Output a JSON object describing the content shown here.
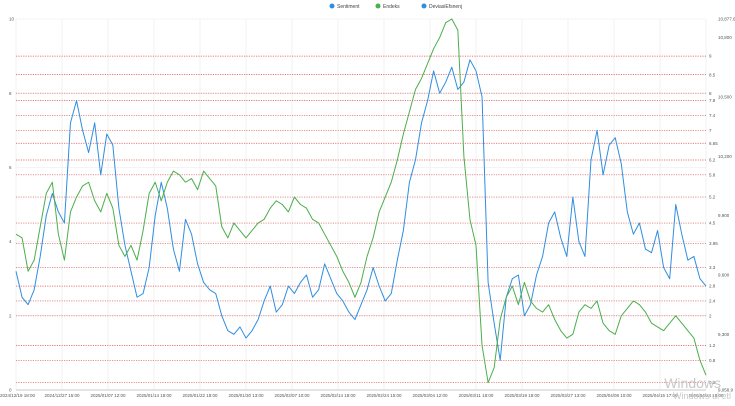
{
  "legend": {
    "items": [
      {
        "label": "Sentiment",
        "color": "#2f8ee0"
      },
      {
        "label": "Endeks",
        "color": "#4cae4c"
      },
      {
        "label": "DeviasiEfsnenj",
        "color": "#2f8ee0"
      }
    ]
  },
  "watermark": {
    "line1": "Windows",
    "line2": "Windows ul etl"
  },
  "chart_data": {
    "type": "line",
    "x_tick_labels": [
      "2024/12/19 18:00",
      "2024/12/27 15:00",
      "2025/01/07 12:00",
      "2025/01/14 18:00",
      "2025/01/22 18:00",
      "2025/01/30 13:00",
      "2025/02/07 10:00",
      "2025/02/14 18:00",
      "2025/02/24 15:00",
      "2025/03/04 12:00",
      "2025/03/11 18:00",
      "2025/03/19 18:00",
      "2025/03/27 13:00",
      "2025/04/08 10:00",
      "2025/04/15 17:00",
      "2025/04/24 18:00"
    ],
    "y_left": {
      "min": 0,
      "max": 10,
      "ticks": [
        "0",
        "2",
        "4",
        "6",
        "8",
        "10"
      ]
    },
    "y_right_ticks": [
      {
        "label": "10,877.61",
        "v": 10.0
      },
      {
        "label": "10,800",
        "v": 9.5
      },
      {
        "label": "10,500",
        "v": 7.9
      },
      {
        "label": "10,200",
        "v": 6.3
      },
      {
        "label": "9,900",
        "v": 4.7
      },
      {
        "label": "9,600",
        "v": 3.1
      },
      {
        "label": "9,300",
        "v": 1.5
      },
      {
        "label": "9,058.9",
        "v": 0.0
      }
    ],
    "reference_lines": [
      {
        "label": "9",
        "v": 9.0
      },
      {
        "label": "8.5",
        "v": 8.5
      },
      {
        "label": "8",
        "v": 8.0
      },
      {
        "label": "7.8",
        "v": 7.8
      },
      {
        "label": "7.4",
        "v": 7.4
      },
      {
        "label": "7",
        "v": 7.0
      },
      {
        "label": "6.65",
        "v": 6.65
      },
      {
        "label": "6.2",
        "v": 6.2
      },
      {
        "label": "5.8",
        "v": 5.8
      },
      {
        "label": "5.2",
        "v": 5.2
      },
      {
        "label": "4.5",
        "v": 4.5
      },
      {
        "label": "3.95",
        "v": 3.95
      },
      {
        "label": "3.3",
        "v": 3.3
      },
      {
        "label": "2.8",
        "v": 2.8
      },
      {
        "label": "2.4",
        "v": 2.4
      },
      {
        "label": "2",
        "v": 2.0
      },
      {
        "label": "1.2",
        "v": 1.2
      },
      {
        "label": "0.8",
        "v": 0.8
      },
      {
        "label": "0.2",
        "v": 0.2
      }
    ],
    "series": [
      {
        "name": "Sentiment",
        "color": "#2f8ee0",
        "values": [
          3.2,
          2.5,
          2.3,
          2.7,
          3.6,
          4.7,
          5.3,
          4.8,
          4.5,
          7.2,
          7.8,
          7.0,
          6.4,
          7.2,
          5.8,
          6.9,
          6.6,
          4.9,
          3.9,
          3.2,
          2.5,
          2.6,
          3.3,
          4.7,
          5.6,
          4.9,
          3.8,
          3.2,
          4.6,
          4.2,
          3.4,
          2.9,
          2.7,
          2.6,
          2.0,
          1.6,
          1.5,
          1.7,
          1.4,
          1.6,
          1.9,
          2.4,
          2.8,
          2.1,
          2.3,
          2.8,
          2.6,
          2.9,
          3.1,
          2.5,
          2.7,
          3.4,
          3.0,
          2.6,
          2.4,
          2.1,
          1.9,
          2.3,
          2.7,
          3.3,
          2.8,
          2.4,
          2.6,
          3.5,
          4.3,
          5.6,
          6.2,
          7.2,
          7.8,
          8.6,
          8.0,
          8.3,
          8.7,
          8.1,
          8.3,
          8.9,
          8.6,
          7.9,
          2.9,
          1.8,
          0.8,
          2.5,
          3.0,
          3.1,
          2.0,
          2.3,
          3.1,
          3.6,
          4.5,
          4.8,
          4.1,
          3.6,
          5.2,
          4.0,
          3.6,
          6.2,
          7.0,
          5.8,
          6.6,
          6.8,
          6.1,
          4.8,
          4.2,
          4.5,
          3.8,
          3.7,
          4.3,
          3.3,
          3.0,
          5.0,
          4.2,
          3.5,
          3.6,
          3.0,
          2.8
        ]
      },
      {
        "name": "Endeks",
        "color": "#4cae4c",
        "values": [
          4.2,
          4.1,
          3.2,
          3.5,
          4.4,
          5.3,
          5.6,
          4.2,
          3.5,
          4.8,
          5.2,
          5.5,
          5.6,
          5.1,
          4.8,
          5.3,
          4.9,
          3.9,
          3.6,
          3.9,
          3.5,
          4.3,
          5.3,
          5.6,
          5.1,
          5.6,
          5.9,
          5.8,
          5.6,
          5.7,
          5.4,
          5.9,
          5.7,
          5.5,
          4.4,
          4.1,
          4.5,
          4.3,
          4.1,
          4.3,
          4.5,
          4.6,
          4.9,
          5.1,
          5.0,
          4.8,
          5.2,
          5.0,
          4.9,
          4.6,
          4.5,
          4.2,
          3.9,
          3.6,
          3.2,
          2.9,
          2.5,
          2.9,
          3.6,
          4.1,
          4.8,
          5.2,
          5.6,
          6.2,
          6.9,
          7.5,
          8.1,
          8.4,
          8.8,
          9.2,
          9.5,
          9.9,
          10.0,
          9.7,
          6.3,
          4.6,
          3.9,
          1.2,
          0.2,
          0.6,
          1.9,
          2.5,
          2.8,
          2.3,
          2.9,
          2.4,
          2.2,
          2.1,
          2.3,
          1.9,
          1.6,
          1.4,
          1.5,
          2.1,
          2.3,
          2.2,
          2.4,
          1.8,
          1.6,
          1.5,
          2.0,
          2.2,
          2.4,
          2.3,
          2.1,
          1.8,
          1.7,
          1.6,
          1.8,
          2.0,
          1.8,
          1.6,
          1.4,
          0.8,
          0.4
        ]
      }
    ]
  }
}
